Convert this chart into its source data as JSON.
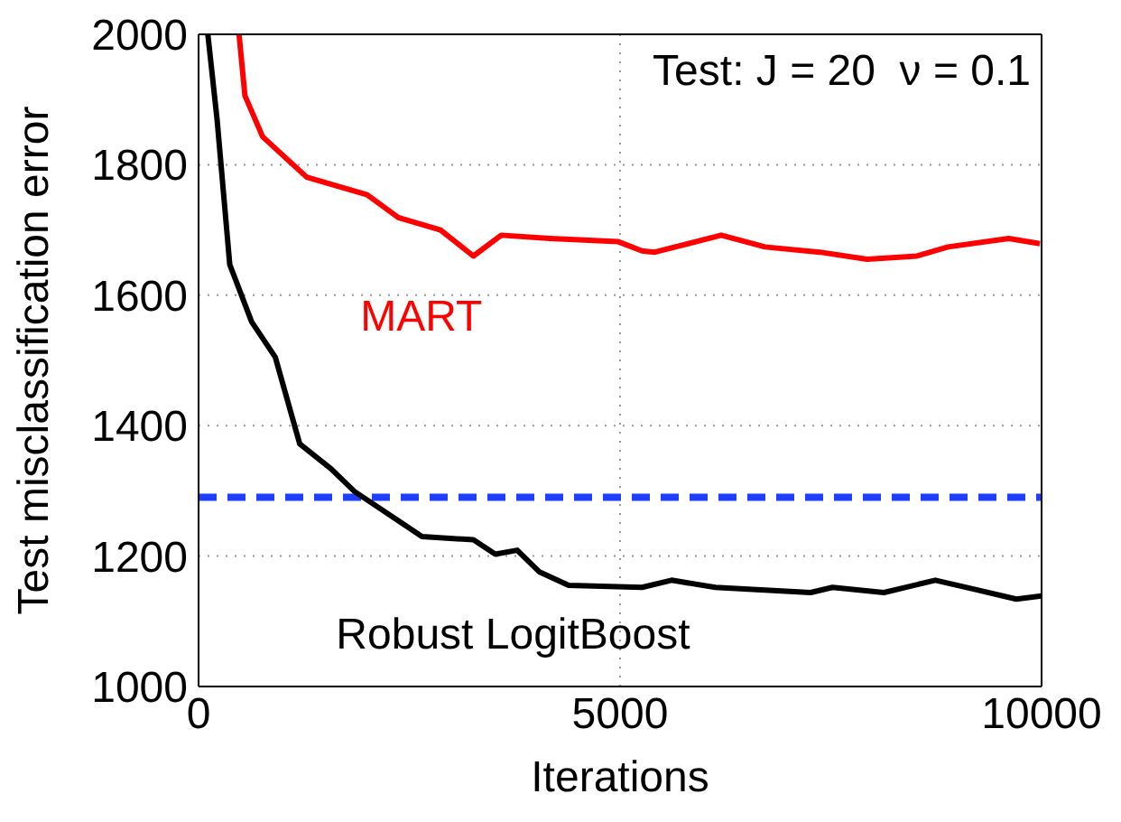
{
  "chart_data": {
    "type": "line",
    "xlabel": "Iterations",
    "ylabel": "Test misclassification error",
    "annotations": [
      "Test: J = 20  ν = 0.1"
    ],
    "xlim": [
      0,
      10000
    ],
    "xticks": [
      0,
      5000,
      10000
    ],
    "ylim": [
      1000,
      2000
    ],
    "yticks": [
      1000,
      1200,
      1400,
      1600,
      1800,
      2000
    ],
    "grid": true,
    "line_style": "solid",
    "marker": "none",
    "series": [
      {
        "name": "MART",
        "color": "#ff0000",
        "x": [
          480,
          550,
          760,
          1283,
          2000,
          2370,
          2870,
          3260,
          3590,
          4170,
          4980,
          5260,
          5410,
          6200,
          6720,
          7370,
          7930,
          8520,
          8890,
          9610,
          9980
        ],
        "values": [
          2000,
          1906,
          1843,
          1781,
          1754,
          1719,
          1700,
          1660,
          1692,
          1687,
          1682,
          1668,
          1666,
          1692,
          1674,
          1666,
          1655,
          1660,
          1674,
          1687,
          1679
        ]
      },
      {
        "name": "Robust LogitBoost",
        "color": "#000000",
        "x": [
          110,
          220,
          370,
          630,
          910,
          1200,
          1570,
          1850,
          2370,
          2650,
          3260,
          3520,
          3780,
          4040,
          4390,
          5260,
          5610,
          6130,
          7260,
          7520,
          8130,
          8740,
          9170,
          9700,
          10000
        ],
        "values": [
          2000,
          1869,
          1647,
          1559,
          1505,
          1372,
          1334,
          1299,
          1254,
          1230,
          1225,
          1203,
          1209,
          1176,
          1155,
          1152,
          1163,
          1152,
          1144,
          1152,
          1144,
          1163,
          1150,
          1134,
          1139
        ]
      }
    ],
    "ref_lines": [
      {
        "axis": "y",
        "value": 1290,
        "color": "#1f3fff",
        "line_style": "dashed"
      }
    ]
  }
}
